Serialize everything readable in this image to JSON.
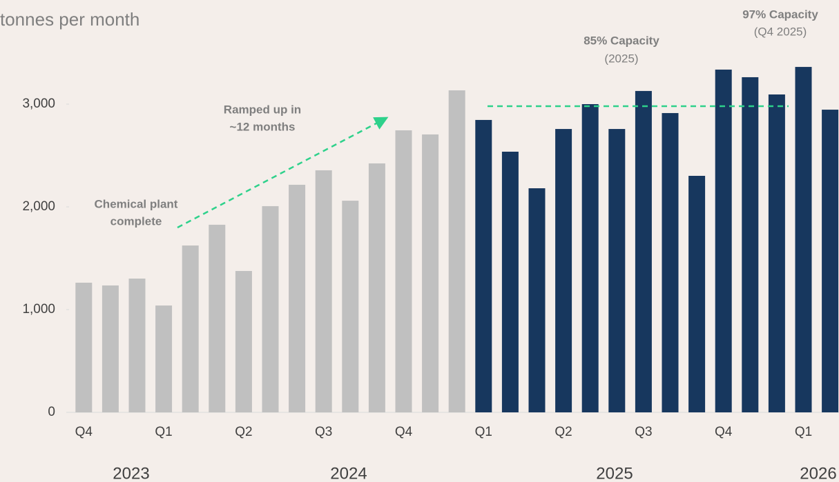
{
  "chart_data": {
    "type": "bar",
    "y_axis_label": "tonnes per month",
    "categories": [
      "Q4",
      null,
      null,
      "Q1",
      null,
      null,
      "Q2",
      null,
      null,
      "Q3",
      null,
      null,
      "Q4",
      null,
      null,
      "Q1",
      null,
      null,
      "Q2",
      null,
      null,
      "Q3",
      null,
      null,
      "Q4",
      null,
      null,
      "Q1",
      null
    ],
    "year_labels": [
      "2023",
      "2024",
      "2025",
      "2026"
    ],
    "series": [
      {
        "color": "#c0c0c0",
        "values": [
          1262,
          1235,
          1302,
          1040,
          1624,
          1826,
          1376,
          2007,
          2215,
          2356,
          2060,
          2423,
          2745,
          2705,
          3134,
          null,
          null,
          null,
          null,
          null,
          null,
          null,
          null,
          null,
          null,
          null,
          null,
          null,
          null
        ]
      },
      {
        "color": "#17375e",
        "values": [
          null,
          null,
          null,
          null,
          null,
          null,
          null,
          null,
          null,
          null,
          null,
          null,
          null,
          null,
          null,
          2846,
          2537,
          2181,
          2758,
          3000,
          2758,
          3128,
          2913,
          2302,
          3336,
          3262,
          3094,
          3362,
          2946
        ]
      }
    ],
    "ylim": [
      0,
      3400
    ],
    "yticks": [
      0,
      {
        "value": 1000,
        "label": "1,000"
      },
      {
        "value": 2000,
        "label": "2,000"
      },
      {
        "value": 3000,
        "label": "3,000"
      }
    ],
    "annotations": {
      "ramp": [
        "Ramped up in",
        "~12 months"
      ],
      "plant": [
        "Chemical plant",
        "complete"
      ],
      "cap85": [
        "85% Capacity",
        "(2025)"
      ],
      "cap97": [
        "97% Capacity",
        "(Q4 2025)"
      ]
    },
    "annotation_color": "#2ed18b"
  }
}
